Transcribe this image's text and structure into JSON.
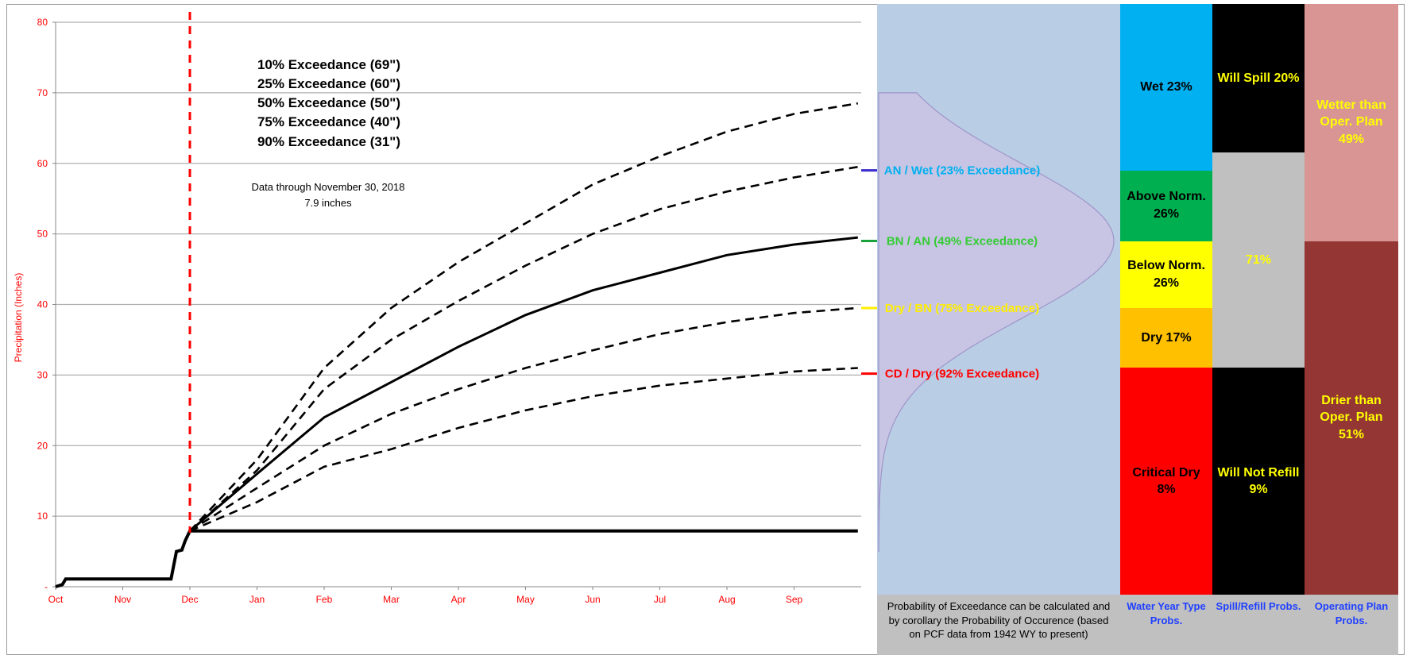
{
  "chart_data": {
    "type": "line",
    "ylabel": "Precipitation (Inches)",
    "ylim": [
      0,
      80
    ],
    "yticks": [
      "-",
      "10",
      "20",
      "30",
      "40",
      "50",
      "60",
      "70",
      "80"
    ],
    "categories": [
      "Oct",
      "Nov",
      "Dec",
      "Jan",
      "Feb",
      "Mar",
      "Apr",
      "May",
      "Jun",
      "Jul",
      "Aug",
      "Sep"
    ],
    "grid": true,
    "legend_lines": [
      "10% Exceedance (69\")",
      "25% Exceedance (60\")",
      "50% Exceedance (50\")",
      "75% Exceedance (40\")",
      "90% Exceedance (31\")"
    ],
    "annotation_line1": "Data through November 30, 2018",
    "annotation_line2": "7.9 inches",
    "data_through_month_index": 2,
    "observed": [
      [
        0,
        0
      ],
      [
        0.1,
        0.3
      ],
      [
        0.15,
        1.1
      ],
      [
        0.5,
        1.1
      ],
      [
        1.0,
        1.1
      ],
      [
        1.5,
        1.1
      ],
      [
        1.72,
        1.1
      ],
      [
        1.8,
        5.0
      ],
      [
        1.88,
        5.2
      ],
      [
        1.93,
        6.5
      ],
      [
        2.0,
        7.9
      ],
      [
        11.95,
        7.9
      ]
    ],
    "series": [
      {
        "name": "10% Exceedance (69\")",
        "style": "dashed",
        "values": [
          [
            2,
            7.9
          ],
          [
            3,
            18
          ],
          [
            4,
            31
          ],
          [
            5,
            39.5
          ],
          [
            6,
            46
          ],
          [
            7,
            51.5
          ],
          [
            8,
            57
          ],
          [
            9,
            61
          ],
          [
            10,
            64.5
          ],
          [
            11,
            67
          ],
          [
            11.95,
            68.5
          ]
        ]
      },
      {
        "name": "25% Exceedance (60\")",
        "style": "dashed",
        "values": [
          [
            2,
            7.9
          ],
          [
            3,
            16.5
          ],
          [
            4,
            28
          ],
          [
            5,
            35
          ],
          [
            6,
            40.5
          ],
          [
            7,
            45.5
          ],
          [
            8,
            50
          ],
          [
            9,
            53.5
          ],
          [
            10,
            56
          ],
          [
            11,
            58
          ],
          [
            11.95,
            59.5
          ]
        ]
      },
      {
        "name": "50% Exceedance (50\")",
        "style": "solid",
        "values": [
          [
            2,
            7.9
          ],
          [
            3,
            16
          ],
          [
            4,
            24
          ],
          [
            5,
            29
          ],
          [
            6,
            34
          ],
          [
            7,
            38.5
          ],
          [
            8,
            42
          ],
          [
            9,
            44.5
          ],
          [
            10,
            47
          ],
          [
            11,
            48.5
          ],
          [
            11.95,
            49.5
          ]
        ]
      },
      {
        "name": "75% Exceedance (40\")",
        "style": "dashed",
        "values": [
          [
            2,
            7.9
          ],
          [
            3,
            14
          ],
          [
            4,
            20
          ],
          [
            5,
            24.5
          ],
          [
            6,
            28
          ],
          [
            7,
            31
          ],
          [
            8,
            33.5
          ],
          [
            9,
            35.8
          ],
          [
            10,
            37.5
          ],
          [
            11,
            38.8
          ],
          [
            11.95,
            39.5
          ]
        ]
      },
      {
        "name": "90% Exceedance (31\")",
        "style": "dashed",
        "values": [
          [
            2,
            7.9
          ],
          [
            3,
            12
          ],
          [
            4,
            17
          ],
          [
            5,
            19.5
          ],
          [
            6,
            22.5
          ],
          [
            7,
            25
          ],
          [
            8,
            27
          ],
          [
            9,
            28.5
          ],
          [
            10,
            29.5
          ],
          [
            11,
            30.5
          ],
          [
            11.95,
            31
          ]
        ]
      }
    ],
    "thresholds": [
      {
        "label": "AN / Wet  (23% Exceedance)",
        "value": 59,
        "color": "#00b0f0",
        "tick_color": "#3a2ccc"
      },
      {
        "label": "BN / AN  (49% Exceedance)",
        "value": 49,
        "color": "#33cc33",
        "tick_color": "#1aa33a"
      },
      {
        "label": "Dry / BN  (75% Exceedance)",
        "value": 39.5,
        "color": "#ffee00",
        "tick_color": "#ffee00"
      },
      {
        "label": "CD / Dry  (92% Exceedance)",
        "value": 30.2,
        "color": "#ff0000",
        "tick_color": "#ff0000"
      }
    ]
  },
  "columns": {
    "water_year": {
      "footer": "Water Year Type Probs.",
      "segments": [
        {
          "label": "Wet 23%",
          "color": "#00b0f0",
          "text": "#000000",
          "from": 80,
          "to": 59
        },
        {
          "label": "Above Norm. 26%",
          "color": "#00b050",
          "text": "#000000",
          "from": 59,
          "to": 49
        },
        {
          "label": "Below Norm. 26%",
          "color": "#ffff00",
          "text": "#000000",
          "from": 49,
          "to": 39.5
        },
        {
          "label": "Dry 17%",
          "color": "#ffc000",
          "text": "#000000",
          "from": 39.5,
          "to": 31
        },
        {
          "label": "Critical Dry 8%",
          "color": "#ff0000",
          "text": "#000000",
          "from": 31,
          "to": 0
        }
      ]
    },
    "spill": {
      "footer": "Spill/Refill Probs.",
      "segments": [
        {
          "label": "Will Spill 20%",
          "color": "#000000",
          "text": "#ffff00",
          "from": 80,
          "to": 61.5
        },
        {
          "label": "71%",
          "color": "#c0c0c0",
          "text": "#ffff00",
          "from": 61.5,
          "to": 31
        },
        {
          "label": "Will Not Refill 9%",
          "color": "#000000",
          "text": "#ffff00",
          "from": 31,
          "to": 0
        }
      ]
    },
    "operating": {
      "footer": "Operating Plan Probs.",
      "segments": [
        {
          "label": "Wetter than Oper. Plan 49%",
          "color": "#d99594",
          "text": "#ffff00",
          "from": 80,
          "to": 49
        },
        {
          "label": "Drier than Oper. Plan 51%",
          "color": "#943634",
          "text": "#ffff00",
          "from": 49,
          "to": 0
        }
      ]
    }
  },
  "exceedance_note": "Probability of Exceedance can be calculated and by corollary the Probability of Occurence (based on PCF data from 1942 WY to present)",
  "colors": {
    "panel_bg": "#b9cde5",
    "bell_curve": "#c9c3e3",
    "marker_red": "#ff0000"
  }
}
